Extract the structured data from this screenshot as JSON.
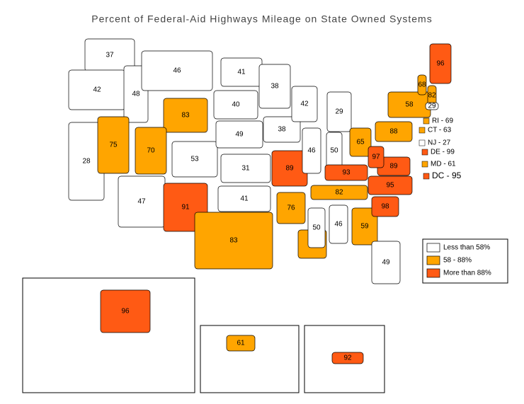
{
  "title": "Percent of Federal-Aid Highways Mileage on State Owned Systems",
  "legend": {
    "breaks": [
      58,
      88
    ],
    "items": [
      {
        "label": "Less than 58%",
        "color": "#ffffff"
      },
      {
        "label": "58 - 88%",
        "color": "#ffa500"
      },
      {
        "label": "More than 88%",
        "color": "#ff5a14"
      }
    ]
  },
  "regions": [
    {
      "value": 37
    },
    {
      "value": 42
    },
    {
      "value": 48
    },
    {
      "value": 46
    },
    {
      "value": 83
    },
    {
      "value": 28
    },
    {
      "value": 75
    },
    {
      "value": 70
    },
    {
      "value": 53
    },
    {
      "value": 47
    },
    {
      "value": 91
    },
    {
      "value": 41
    },
    {
      "value": 40
    },
    {
      "value": 49
    },
    {
      "value": 31
    },
    {
      "value": 41
    },
    {
      "value": 83
    },
    {
      "value": 38
    },
    {
      "value": 38
    },
    {
      "value": 89
    },
    {
      "value": 76
    },
    {
      "value": 86
    },
    {
      "value": 42
    },
    {
      "value": 46
    },
    {
      "value": 29
    },
    {
      "value": 50
    },
    {
      "value": 65
    },
    {
      "value": 93
    },
    {
      "value": 82
    },
    {
      "value": 50
    },
    {
      "value": 46
    },
    {
      "value": 59
    },
    {
      "value": 49
    },
    {
      "value": 98
    },
    {
      "value": 95
    },
    {
      "value": 89
    },
    {
      "value": 97
    },
    {
      "value": 88
    },
    {
      "value": 58
    },
    {
      "value": 96
    },
    {
      "value": 68
    },
    {
      "value": 82
    },
    {
      "value": 29
    },
    {
      "value": 69,
      "label": "RI - 69"
    },
    {
      "value": 63,
      "label": "CT - 63"
    },
    {
      "value": 27,
      "label": "NJ - 27"
    },
    {
      "value": 99,
      "label": "DE - 99"
    },
    {
      "value": 61,
      "label": "MD - 61"
    },
    {
      "value": 95,
      "label": "DC - 95"
    },
    {
      "value": 96
    },
    {
      "value": 61
    },
    {
      "value": 92
    }
  ]
}
